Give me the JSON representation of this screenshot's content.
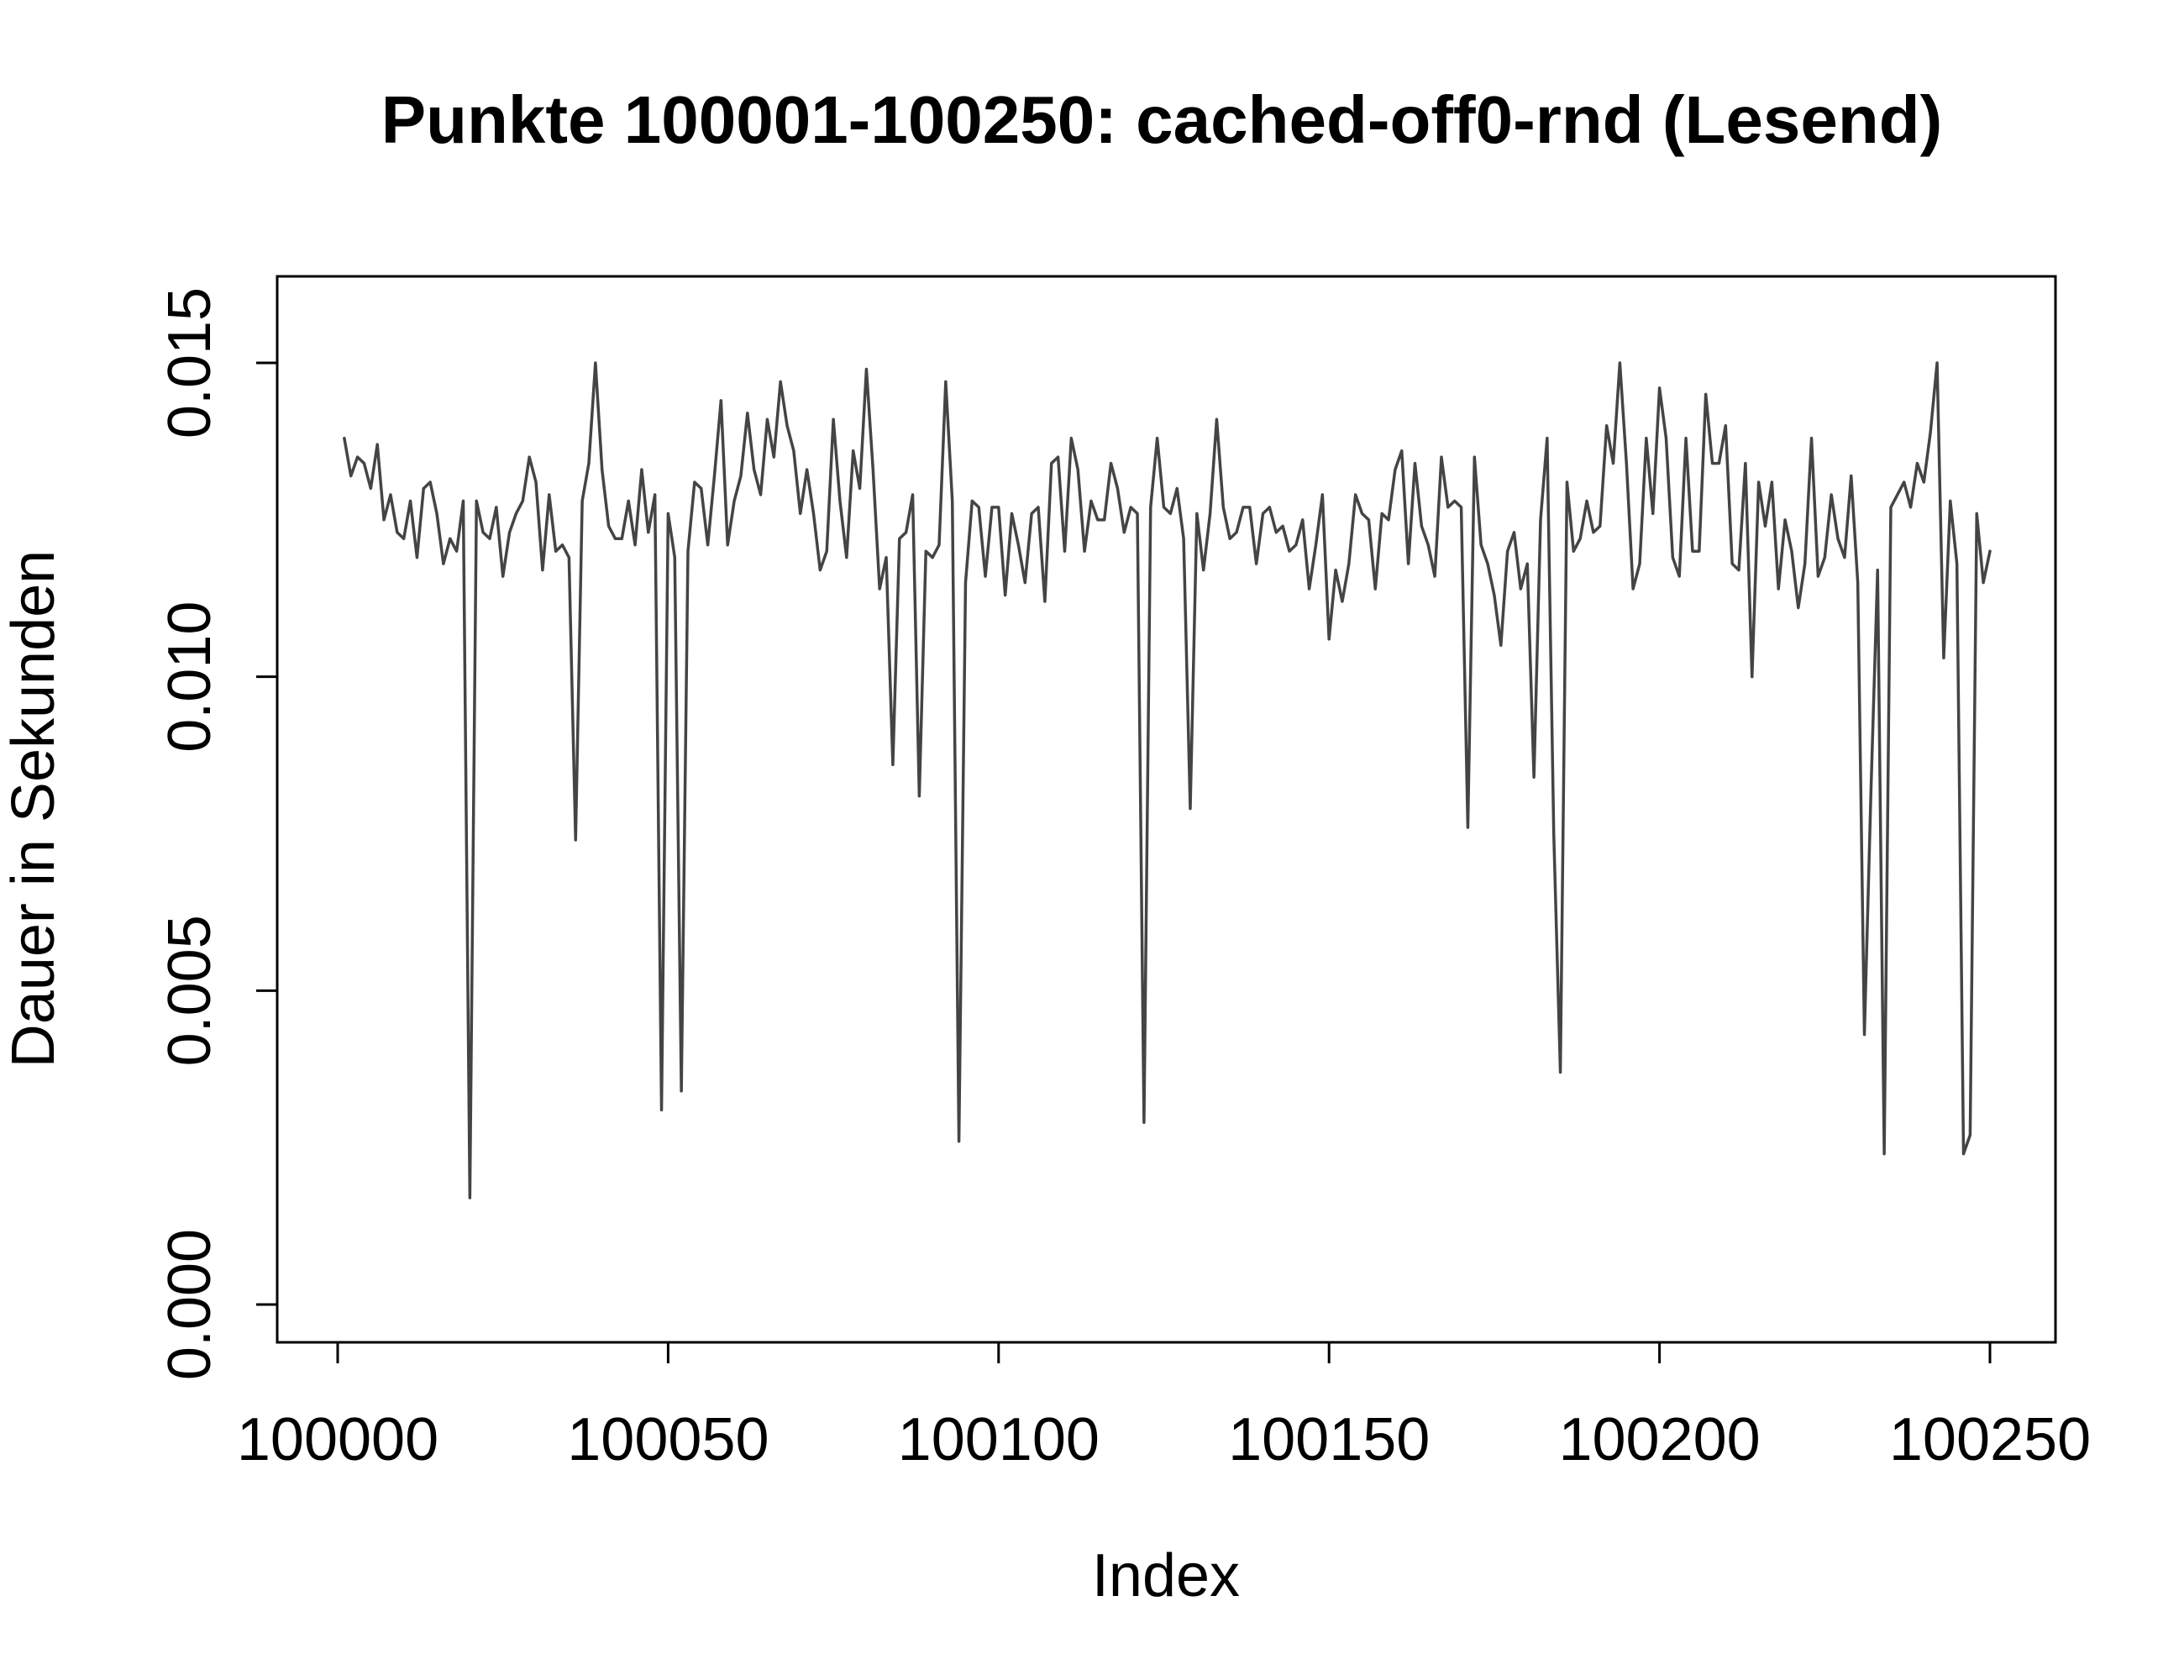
{
  "chart_data": {
    "type": "line",
    "title": "Punkte 100001-100250: cached-off0-rnd (Lesend)",
    "xlabel": "Index",
    "ylabel": "Dauer in Sekunden",
    "xlim": [
      100000,
      100260
    ],
    "ylim": [
      0.0,
      0.0163
    ],
    "x_ticks": [
      100000,
      100050,
      100100,
      100150,
      100200,
      100250
    ],
    "x_tick_labels": [
      "100000",
      "100050",
      "100100",
      "100150",
      "100200",
      "100250"
    ],
    "y_ticks": [
      0.0,
      0.005,
      0.01,
      0.015
    ],
    "y_tick_labels": [
      "0.000",
      "0.005",
      "0.010",
      "0.015"
    ],
    "grid": false,
    "legend": "none",
    "line_color": "#444444",
    "x_start": 100001,
    "series": [
      {
        "values": [
          0.0138,
          0.0132,
          0.0135,
          0.0134,
          0.013,
          0.0137,
          0.0125,
          0.0129,
          0.0123,
          0.0122,
          0.0128,
          0.0119,
          0.013,
          0.0131,
          0.0126,
          0.0118,
          0.0122,
          0.012,
          0.0128,
          0.0017,
          0.0128,
          0.0123,
          0.0122,
          0.0127,
          0.0116,
          0.0123,
          0.0126,
          0.0128,
          0.0135,
          0.0131,
          0.0117,
          0.0129,
          0.012,
          0.0121,
          0.0119,
          0.0074,
          0.0128,
          0.0134,
          0.015,
          0.0133,
          0.0124,
          0.0122,
          0.0122,
          0.0128,
          0.0121,
          0.0133,
          0.0123,
          0.0129,
          0.0031,
          0.0126,
          0.0119,
          0.0034,
          0.012,
          0.0131,
          0.013,
          0.0121,
          0.0132,
          0.0144,
          0.0121,
          0.0128,
          0.0132,
          0.0142,
          0.0133,
          0.0129,
          0.0141,
          0.0135,
          0.0147,
          0.014,
          0.0136,
          0.0126,
          0.0133,
          0.0126,
          0.0117,
          0.012,
          0.0141,
          0.0128,
          0.0119,
          0.0136,
          0.013,
          0.0149,
          0.0133,
          0.0114,
          0.0119,
          0.0086,
          0.0122,
          0.0123,
          0.0129,
          0.0081,
          0.012,
          0.0119,
          0.0121,
          0.0147,
          0.0128,
          0.0026,
          0.0115,
          0.0128,
          0.0127,
          0.0116,
          0.0127,
          0.0127,
          0.0113,
          0.0126,
          0.0121,
          0.0115,
          0.0126,
          0.0127,
          0.0112,
          0.0134,
          0.0135,
          0.012,
          0.0138,
          0.0133,
          0.012,
          0.0128,
          0.0125,
          0.0125,
          0.0134,
          0.013,
          0.0123,
          0.0127,
          0.0126,
          0.0029,
          0.0127,
          0.0138,
          0.0127,
          0.0126,
          0.013,
          0.0122,
          0.0079,
          0.0126,
          0.0117,
          0.0126,
          0.0141,
          0.0127,
          0.0122,
          0.0123,
          0.0127,
          0.0127,
          0.0118,
          0.0126,
          0.0127,
          0.0123,
          0.0124,
          0.012,
          0.0121,
          0.0125,
          0.0114,
          0.0121,
          0.0129,
          0.0106,
          0.0117,
          0.0112,
          0.0118,
          0.0129,
          0.0126,
          0.0125,
          0.0114,
          0.0126,
          0.0125,
          0.0133,
          0.0136,
          0.0118,
          0.0134,
          0.0124,
          0.0121,
          0.0116,
          0.0135,
          0.0127,
          0.0128,
          0.0127,
          0.0076,
          0.0135,
          0.0121,
          0.0118,
          0.0113,
          0.0105,
          0.012,
          0.0123,
          0.0114,
          0.0118,
          0.0084,
          0.0125,
          0.0138,
          0.0075,
          0.0037,
          0.0131,
          0.012,
          0.0122,
          0.0128,
          0.0123,
          0.0124,
          0.014,
          0.0134,
          0.015,
          0.0134,
          0.0114,
          0.0118,
          0.0138,
          0.0126,
          0.0146,
          0.0138,
          0.0119,
          0.0116,
          0.0138,
          0.012,
          0.012,
          0.0145,
          0.0134,
          0.0134,
          0.014,
          0.0118,
          0.0117,
          0.0134,
          0.01,
          0.0131,
          0.0124,
          0.0131,
          0.0114,
          0.0125,
          0.012,
          0.0111,
          0.0118,
          0.0138,
          0.0116,
          0.0119,
          0.0129,
          0.0122,
          0.0119,
          0.0132,
          0.0115,
          0.0043,
          0.0082,
          0.0117,
          0.0024,
          0.0127,
          0.0129,
          0.0131,
          0.0127,
          0.0134,
          0.0131,
          0.0139,
          0.015,
          0.0103,
          0.0128,
          0.0118,
          0.0024,
          0.0027,
          0.0126,
          0.0115,
          0.012
        ]
      }
    ]
  }
}
